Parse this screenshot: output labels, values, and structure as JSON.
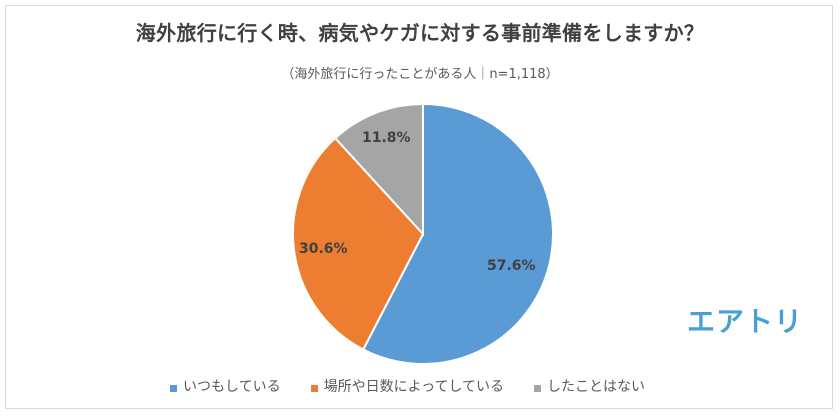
{
  "title": "海外旅行に行く時、病気やケガに対する事前準備をしますか？",
  "subtitle": "（海外旅行に行ったことがある人｜n=1,118）",
  "logo": "エアトリ",
  "chart_data": {
    "type": "pie",
    "title": "海外旅行に行く時、病気やケガに対する事前準備をしますか？",
    "subtitle": "（海外旅行に行ったことがある人｜n=1,118）",
    "categories": [
      "いつもしている",
      "場所や日数によってしている",
      "したことはない"
    ],
    "values": [
      57.6,
      30.6,
      11.8
    ],
    "colors": [
      "#5b9bd5",
      "#ed7d31",
      "#a5a5a5"
    ],
    "data_labels": [
      "57.6%",
      "30.6%",
      "11.8%"
    ],
    "start_angle": "12 o'clock, clockwise",
    "legend_position": "bottom"
  },
  "labels": {
    "always": "57.6%",
    "sometimes": "30.6%",
    "never": "11.8%"
  },
  "legend": [
    {
      "label": "いつもしている",
      "color": "#5b9bd5"
    },
    {
      "label": "場所や日数によってしている",
      "color": "#ed7d31"
    },
    {
      "label": "したことはない",
      "color": "#a5a5a5"
    }
  ]
}
